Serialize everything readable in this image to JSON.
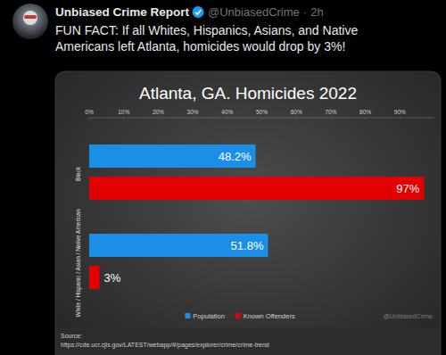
{
  "post": {
    "display_name": "Unbiased Crime Report",
    "handle": "@UnbiasedCrime",
    "separator": "·",
    "time": "2h",
    "text": [
      "FUN FACT: If all Whites, Hispanics, Asians, and Native",
      "Americans left Atlanta, homicides would drop by 3%!"
    ]
  },
  "chart_data": {
    "type": "bar",
    "orientation": "horizontal",
    "title": "Atlanta, GA. Homicides 2022",
    "categories": [
      "Black",
      "White / Hispanic / Asian / Native American"
    ],
    "series": [
      {
        "name": "Population",
        "color": "#1b8fe6",
        "values": [
          48.2,
          51.8
        ],
        "value_labels": [
          "48.2%",
          "51.8%"
        ]
      },
      {
        "name": "Known Offenders",
        "color": "#e30000",
        "values": [
          97,
          3
        ],
        "value_labels": [
          "97%",
          "3%"
        ]
      }
    ],
    "xlim": [
      0,
      100
    ],
    "xticks": [
      {
        "value": 0,
        "label": "0%"
      },
      {
        "value": 10,
        "label": "10%"
      },
      {
        "value": 20,
        "label": "20%"
      },
      {
        "value": 30,
        "label": "30%"
      },
      {
        "value": 40,
        "label": "40%"
      },
      {
        "value": 50,
        "label": "50%"
      },
      {
        "value": 60,
        "label": "60%"
      },
      {
        "value": 70,
        "label": "70%"
      },
      {
        "value": 80,
        "label": "80%"
      },
      {
        "value": 90,
        "label": "90%"
      }
    ],
    "grid": false,
    "data_labels": true,
    "legend": "bottom",
    "annotations": [
      "@UnbiasedCrime"
    ],
    "source": {
      "label": "Source:",
      "url": "https://cde.ucr.cjis.gov/LATEST/webapp/#/pages/explorer/crime/crime-trend"
    }
  }
}
